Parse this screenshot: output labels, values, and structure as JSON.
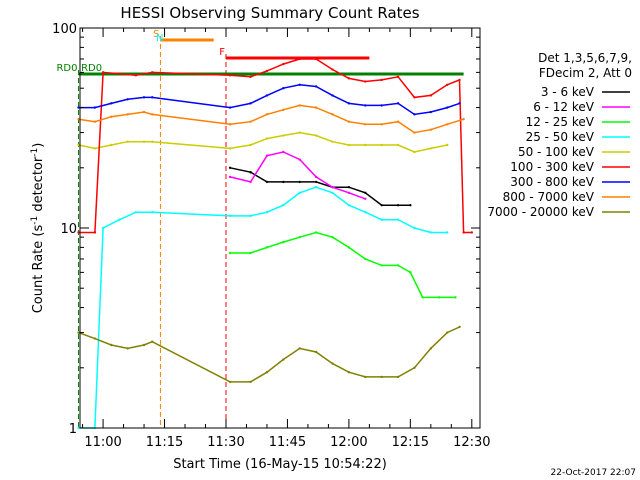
{
  "chart_data": {
    "type": "line",
    "title": "HESSI Observing Summary Count Rates",
    "xlabel": "Start Time (16-May-15 10:54:22)",
    "ylabel_main": "Count Rate (s",
    "ylabel_exp1": "-1",
    "ylabel_mid": " detector",
    "ylabel_exp2": "-1",
    "ylabel_close": ")",
    "y_scale": "log",
    "ylim": [
      1,
      100
    ],
    "xlim": [
      "10:54:22",
      "12:32:00"
    ],
    "y_ticks": [
      "1",
      "10",
      "100"
    ],
    "x_ticks": [
      "11:00",
      "11:15",
      "11:30",
      "11:45",
      "12:00",
      "12:15",
      "12:30"
    ],
    "timestamp": "22-Oct-2017 22:07",
    "legend": {
      "header1": "Det 1,3,5,6,7,9,",
      "header2": "FDecim 2, Att 0",
      "placement": "right",
      "entries": [
        {
          "label": "3 - 6 keV",
          "color": "#000000"
        },
        {
          "label": "6 - 12 keV",
          "color": "#ff00ff"
        },
        {
          "label": "12 - 25 keV",
          "color": "#00ff00"
        },
        {
          "label": "25 - 50 keV",
          "color": "#00ffff"
        },
        {
          "label": "50 - 100 keV",
          "color": "#cccc00"
        },
        {
          "label": "100 - 300 keV",
          "color": "#ff0000"
        },
        {
          "label": "300 - 800 keV",
          "color": "#0000ff"
        },
        {
          "label": "800 - 7000 keV",
          "color": "#ff8000"
        },
        {
          "label": "7000 - 20000 keV",
          "color": "#808000"
        }
      ]
    },
    "flags": [
      {
        "label": "S",
        "color": "#ff8000",
        "start": "11:14",
        "end": "11:27"
      },
      {
        "label": "N",
        "color": "#00ffff",
        "start": "11:15",
        "end": "11:15"
      },
      {
        "label": "F",
        "color": "#ff0000",
        "start": "11:30",
        "end": "12:05"
      },
      {
        "label": "RD0",
        "color": "#008000",
        "start": "10:54",
        "end": "12:28"
      },
      {
        "label": "RD0",
        "color": "#008000",
        "start": "11:00",
        "end": "11:00"
      }
    ],
    "series": [
      {
        "name": "3 - 6 keV",
        "color": "#000000",
        "points": [
          [
            "11:31",
            20
          ],
          [
            "11:36",
            19
          ],
          [
            "11:40",
            17
          ],
          [
            "11:44",
            17
          ],
          [
            "11:48",
            17
          ],
          [
            "11:52",
            17
          ],
          [
            "11:56",
            16
          ],
          [
            "12:00",
            16
          ],
          [
            "12:04",
            15
          ],
          [
            "12:08",
            13
          ],
          [
            "12:12",
            13
          ],
          [
            "12:15",
            13
          ]
        ]
      },
      {
        "name": "6 - 12 keV",
        "color": "#ff00ff",
        "points": [
          [
            "11:31",
            18
          ],
          [
            "11:36",
            17
          ],
          [
            "11:40",
            23
          ],
          [
            "11:44",
            24
          ],
          [
            "11:48",
            22
          ],
          [
            "11:52",
            18
          ],
          [
            "11:56",
            16
          ],
          [
            "12:00",
            15
          ],
          [
            "12:04",
            14
          ]
        ]
      },
      {
        "name": "12 - 25 keV",
        "color": "#00ff00",
        "points": [
          [
            "11:31",
            7.5
          ],
          [
            "11:36",
            7.5
          ],
          [
            "11:40",
            8
          ],
          [
            "11:44",
            8.5
          ],
          [
            "11:48",
            9
          ],
          [
            "11:52",
            9.5
          ],
          [
            "11:56",
            9
          ],
          [
            "12:00",
            8
          ],
          [
            "12:04",
            7
          ],
          [
            "12:08",
            6.5
          ],
          [
            "12:12",
            6.5
          ],
          [
            "12:15",
            6
          ],
          [
            "12:18",
            4.5
          ],
          [
            "12:22",
            4.5
          ],
          [
            "12:26",
            4.5
          ]
        ]
      },
      {
        "name": "25 - 50 keV",
        "color": "#00ffff",
        "points": [
          [
            "10:54",
            1
          ],
          [
            "10:58",
            1
          ],
          [
            "11:00",
            10
          ],
          [
            "11:04",
            11
          ],
          [
            "11:08",
            12
          ],
          [
            "11:12",
            12
          ],
          [
            "11:31",
            11.5
          ],
          [
            "11:36",
            11.5
          ],
          [
            "11:40",
            12
          ],
          [
            "11:44",
            13
          ],
          [
            "11:48",
            15
          ],
          [
            "11:52",
            16
          ],
          [
            "11:56",
            15
          ],
          [
            "12:00",
            13
          ],
          [
            "12:04",
            12
          ],
          [
            "12:08",
            11
          ],
          [
            "12:12",
            11
          ],
          [
            "12:16",
            10
          ],
          [
            "12:20",
            9.5
          ],
          [
            "12:24",
            9.5
          ]
        ]
      },
      {
        "name": "50 - 100 keV",
        "color": "#cccc00",
        "points": [
          [
            "10:54",
            26
          ],
          [
            "10:58",
            25
          ],
          [
            "11:02",
            26
          ],
          [
            "11:06",
            27
          ],
          [
            "11:10",
            27
          ],
          [
            "11:12",
            27
          ],
          [
            "11:31",
            25
          ],
          [
            "11:36",
            26
          ],
          [
            "11:40",
            28
          ],
          [
            "11:44",
            29
          ],
          [
            "11:48",
            30
          ],
          [
            "11:52",
            29
          ],
          [
            "11:56",
            27
          ],
          [
            "12:00",
            26
          ],
          [
            "12:04",
            26
          ],
          [
            "12:08",
            26
          ],
          [
            "12:12",
            26
          ],
          [
            "12:16",
            24
          ],
          [
            "12:20",
            25
          ],
          [
            "12:24",
            26
          ]
        ]
      },
      {
        "name": "100 - 300 keV",
        "color": "#ff0000",
        "points": [
          [
            "10:54",
            9.5
          ],
          [
            "10:58",
            9.5
          ],
          [
            "11:00",
            60
          ],
          [
            "11:04",
            59
          ],
          [
            "11:08",
            58
          ],
          [
            "11:12",
            60
          ],
          [
            "11:31",
            58
          ],
          [
            "11:36",
            57
          ],
          [
            "11:40",
            61
          ],
          [
            "11:44",
            66
          ],
          [
            "11:48",
            70
          ],
          [
            "11:52",
            70
          ],
          [
            "11:56",
            62
          ],
          [
            "12:00",
            56
          ],
          [
            "12:04",
            54
          ],
          [
            "12:08",
            55
          ],
          [
            "12:12",
            57
          ],
          [
            "12:16",
            45
          ],
          [
            "12:20",
            46
          ],
          [
            "12:24",
            52
          ],
          [
            "12:27",
            55
          ],
          [
            "12:28",
            9.5
          ],
          [
            "12:30",
            9.5
          ]
        ]
      },
      {
        "name": "300 - 800 keV",
        "color": "#0000ff",
        "points": [
          [
            "10:54",
            40
          ],
          [
            "10:58",
            40
          ],
          [
            "11:02",
            42
          ],
          [
            "11:06",
            44
          ],
          [
            "11:10",
            45
          ],
          [
            "11:12",
            45
          ],
          [
            "11:31",
            40
          ],
          [
            "11:36",
            42
          ],
          [
            "11:40",
            46
          ],
          [
            "11:44",
            50
          ],
          [
            "11:48",
            52
          ],
          [
            "11:52",
            51
          ],
          [
            "11:56",
            46
          ],
          [
            "12:00",
            42
          ],
          [
            "12:04",
            41
          ],
          [
            "12:08",
            41
          ],
          [
            "12:12",
            42
          ],
          [
            "12:16",
            37
          ],
          [
            "12:20",
            38
          ],
          [
            "12:24",
            40
          ],
          [
            "12:27",
            42
          ]
        ]
      },
      {
        "name": "800 - 7000 keV",
        "color": "#ff8000",
        "points": [
          [
            "10:54",
            35
          ],
          [
            "10:58",
            34
          ],
          [
            "11:02",
            36
          ],
          [
            "11:06",
            37
          ],
          [
            "11:10",
            38
          ],
          [
            "11:12",
            37
          ],
          [
            "11:31",
            33
          ],
          [
            "11:36",
            34
          ],
          [
            "11:40",
            37
          ],
          [
            "11:44",
            39
          ],
          [
            "11:48",
            41
          ],
          [
            "11:52",
            40
          ],
          [
            "11:56",
            37
          ],
          [
            "12:00",
            34
          ],
          [
            "12:04",
            33
          ],
          [
            "12:08",
            33
          ],
          [
            "12:12",
            34
          ],
          [
            "12:16",
            30
          ],
          [
            "12:20",
            31
          ],
          [
            "12:24",
            33
          ],
          [
            "12:28",
            35
          ]
        ]
      },
      {
        "name": "7000 - 20000 keV",
        "color": "#808000",
        "points": [
          [
            "10:54",
            3
          ],
          [
            "10:58",
            2.8
          ],
          [
            "11:02",
            2.6
          ],
          [
            "11:06",
            2.5
          ],
          [
            "11:10",
            2.6
          ],
          [
            "11:12",
            2.7
          ],
          [
            "11:31",
            1.7
          ],
          [
            "11:36",
            1.7
          ],
          [
            "11:40",
            1.9
          ],
          [
            "11:44",
            2.2
          ],
          [
            "11:48",
            2.5
          ],
          [
            "11:52",
            2.4
          ],
          [
            "11:56",
            2.1
          ],
          [
            "12:00",
            1.9
          ],
          [
            "12:04",
            1.8
          ],
          [
            "12:08",
            1.8
          ],
          [
            "12:12",
            1.8
          ],
          [
            "12:16",
            2.0
          ],
          [
            "12:20",
            2.5
          ],
          [
            "12:24",
            3.0
          ],
          [
            "12:27",
            3.2
          ]
        ]
      }
    ]
  }
}
